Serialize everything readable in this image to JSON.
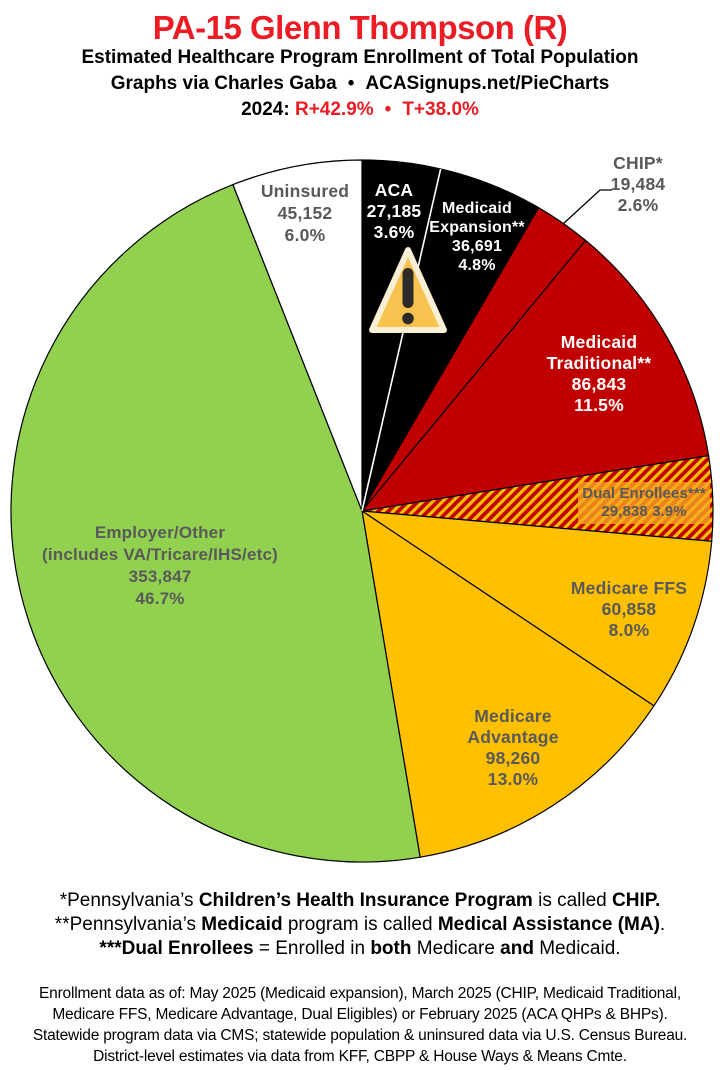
{
  "header": {
    "title": "PA-15 Glenn Thompson (R)",
    "title_color": "#EC1C24",
    "subtitle1": "Estimated Healthcare Program Enrollment of Total Population",
    "credit_left": "Graphs via Charles Gaba",
    "credit_sep": "•",
    "credit_right": "ACASignups.net/PieCharts",
    "year_label": "2024:",
    "r_value": "R+42.9%",
    "lean_sep": "•",
    "t_value": "T+38.0%"
  },
  "chart_data": {
    "type": "pie",
    "title": "PA-15 Glenn Thompson (R) — Estimated Healthcare Program Enrollment of Total Population",
    "start_angle_deg": 0,
    "direction": "clockwise",
    "outline_color": "#000000",
    "slices": [
      {
        "label": "ACA",
        "value_num": 27185,
        "value": "27,185",
        "pct": 3.6,
        "color": "#000000",
        "label_color": "#FFFFFF",
        "label_lines": [
          "ACA",
          "27,185",
          "3.6%"
        ]
      },
      {
        "label": "Medicaid Expansion**",
        "value_num": 36691,
        "value": "36,691",
        "pct": 4.8,
        "color": "#000000",
        "label_color": "#FFFFFF",
        "label_lines": [
          "Medicaid",
          "Expansion**",
          "36,691",
          "4.8%"
        ]
      },
      {
        "label": "CHIP*",
        "value_num": 19484,
        "value": "19,484",
        "pct": 2.6,
        "color": "#C00000",
        "label_color": "#595959",
        "label_outside": true,
        "label_lines": [
          "CHIP*",
          "19,484",
          "2.6%"
        ]
      },
      {
        "label": "Medicaid Traditional**",
        "value_num": 86843,
        "value": "86,843",
        "pct": 11.5,
        "color": "#C00000",
        "label_color": "#FFFFFF",
        "label_lines": [
          "Medicaid",
          "Traditional**",
          "86,843",
          "11.5%"
        ]
      },
      {
        "label": "Dual Enrollees***",
        "value_num": 29838,
        "value": "29,838",
        "pct": 3.9,
        "color": "#C00000",
        "hatch": true,
        "label_color": "#595959",
        "label_lines": [
          "Dual Enrollees***",
          "29,838 3.9%"
        ]
      },
      {
        "label": "Medicare FFS",
        "value_num": 60858,
        "value": "60,858",
        "pct": 8.0,
        "color": "#FFC000",
        "label_color": "#595959",
        "label_lines": [
          "Medicare FFS",
          "60,858",
          "8.0%"
        ]
      },
      {
        "label": "Medicare Advantage",
        "value_num": 98260,
        "value": "98,260",
        "pct": 13.0,
        "color": "#FFC000",
        "label_color": "#595959",
        "label_lines": [
          "Medicare",
          "Advantage",
          "98,260",
          "13.0%"
        ]
      },
      {
        "label": "Employer/Other",
        "value_num": 353847,
        "value": "353,847",
        "pct": 46.7,
        "color": "#92D050",
        "label_color": "#595959",
        "label_lines": [
          "Employer/Other",
          "(includes VA/Tricare/IHS/etc)",
          "353,847",
          "46.7%"
        ]
      },
      {
        "label": "Uninsured",
        "value_num": 45152,
        "value": "45,152",
        "pct": 6.0,
        "color": "#FFFFFF",
        "label_color": "#595959",
        "label_lines": [
          "Uninsured",
          "45,152",
          "6.0%"
        ]
      }
    ],
    "hatch_colors": {
      "base": "#C00000",
      "stripe": "#FFC000"
    },
    "white_divider_between": [
      "ACA",
      "Medicaid Expansion**"
    ],
    "warning_icon": {
      "fill": "#F7C24E",
      "border": "#FAEFD4",
      "glyph": "#2E2A27"
    }
  },
  "footnotes": [
    {
      "segments": [
        "*Pennsylvania’s ",
        "Children’s Health Insurance Program",
        " is called ",
        "CHIP."
      ]
    },
    {
      "segments": [
        "**Pennsylvania’s ",
        "Medicaid",
        " program is called ",
        "Medical Assistance (MA)",
        "."
      ]
    },
    {
      "segments": [
        "***Dual Enrollees",
        " = Enrolled in ",
        "both",
        " Medicare ",
        "and",
        " Medicaid."
      ]
    }
  ],
  "footer": {
    "lines": [
      "Enrollment data as of: May 2025 (Medicaid expansion), March 2025 (CHIP, Medicaid Traditional,",
      "Medicare FFS, Medicare Advantage, Dual Eligibles) or February 2025 (ACA QHPs & BHPs).",
      "Statewide program data via CMS; statewide population & uninsured data via U.S. Census Bureau.",
      "District-level estimates via data from KFF, CBPP & House Ways & Means Cmte."
    ]
  }
}
